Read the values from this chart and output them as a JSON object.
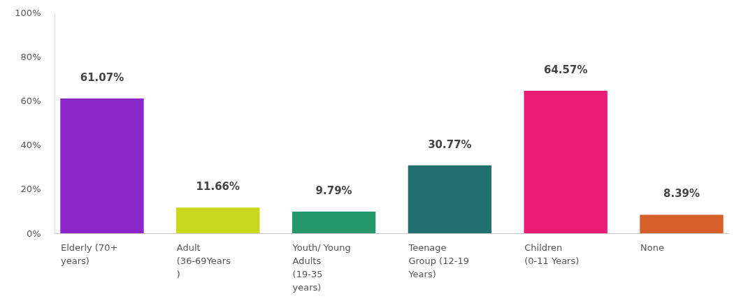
{
  "chart_data": {
    "type": "bar",
    "categories": [
      "Elderly (70+ years)",
      "Adult (36-69Years )",
      "Youth/ Young Adults (19-35 years)",
      "Teenage Group (12-19 Years)",
      "Children (0-11 Years)",
      "None"
    ],
    "values": [
      61.07,
      11.66,
      9.79,
      30.77,
      64.57,
      8.39
    ],
    "colors": [
      "#8b26c9",
      "#c9d81d",
      "#25976a",
      "#226f70",
      "#ea1b74",
      "#d5602a"
    ],
    "value_labels": [
      "61.07%",
      "11.66%",
      "9.79%",
      "30.77%",
      "64.57%",
      "8.39%"
    ],
    "ylim": [
      0,
      100
    ],
    "yticks": [
      {
        "value": 0,
        "label": "0%"
      },
      {
        "value": 20,
        "label": "20%"
      },
      {
        "value": 40,
        "label": "40%"
      },
      {
        "value": 60,
        "label": "60%"
      },
      {
        "value": 80,
        "label": "80%"
      },
      {
        "value": 100,
        "label": "100%"
      }
    ],
    "grid": false
  }
}
